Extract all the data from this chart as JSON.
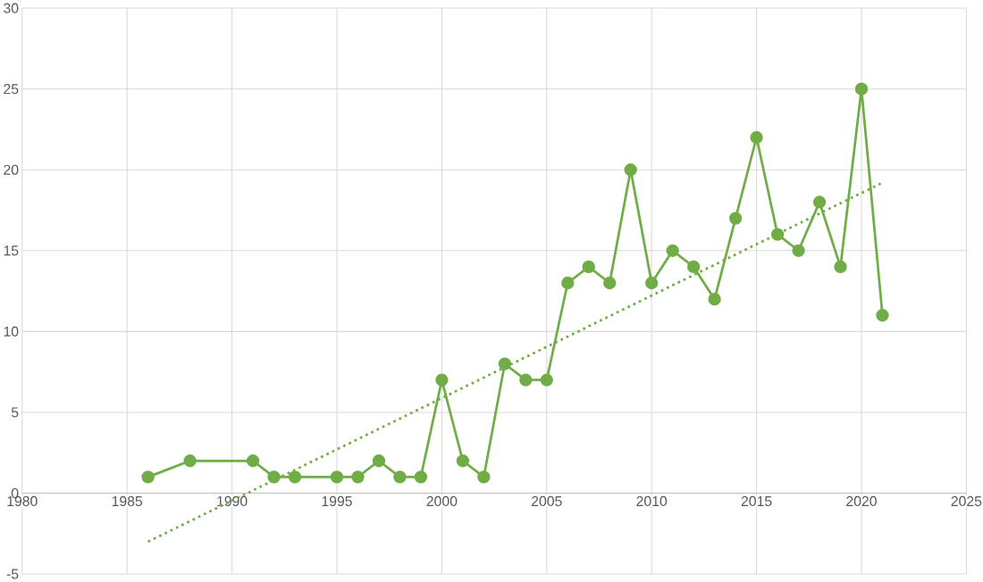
{
  "chart_data": {
    "type": "line",
    "xlim": [
      1980,
      2025
    ],
    "xticks": [
      1980,
      1985,
      1990,
      1995,
      2000,
      2005,
      2010,
      2015,
      2020,
      2025
    ],
    "ylim": [
      -5,
      30
    ],
    "yticks": [
      -5,
      0,
      5,
      10,
      15,
      20,
      25,
      30
    ],
    "grid": true,
    "series": [
      {
        "color": "#70ad47",
        "marker": "circle",
        "line_style": "solid",
        "x": [
          1986,
          1988,
          1991,
          1992,
          1993,
          1995,
          1996,
          1997,
          1998,
          1999,
          2000,
          2001,
          2002,
          2003,
          2004,
          2005,
          2006,
          2007,
          2008,
          2009,
          2010,
          2011,
          2012,
          2013,
          2014,
          2015,
          2016,
          2017,
          2018,
          2019,
          2020,
          2021
        ],
        "values": [
          1,
          2,
          2,
          1,
          1,
          1,
          1,
          2,
          1,
          1,
          7,
          2,
          1,
          8,
          7,
          7,
          13,
          14,
          13,
          20,
          13,
          15,
          14,
          12,
          17,
          22,
          16,
          15,
          18,
          14,
          25,
          11
        ]
      },
      {
        "color": "#70ad47",
        "marker": "none",
        "line_style": "dotted",
        "x": [
          1986,
          2021
        ],
        "values": [
          -3,
          19.2
        ]
      }
    ]
  }
}
